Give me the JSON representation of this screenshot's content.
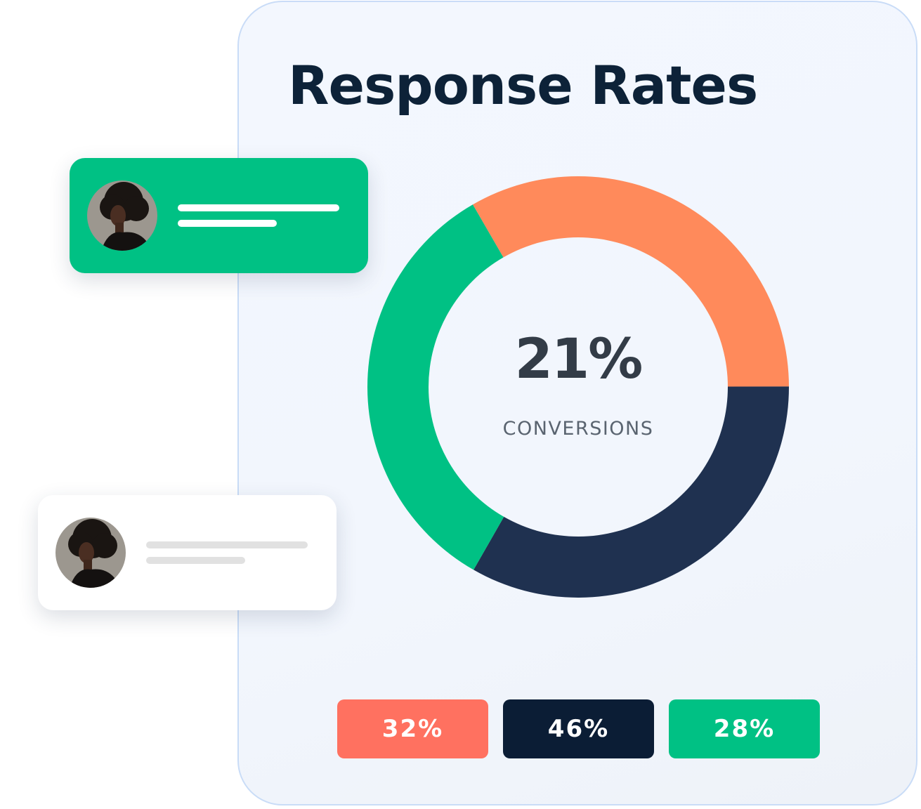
{
  "header": {
    "title": "Response Rates"
  },
  "chart_data": {
    "type": "pie",
    "variant": "donut",
    "center_value": "21%",
    "center_label": "CONVERSIONS",
    "segments": [
      {
        "value": 0.333,
        "color": "#ff8a5b"
      },
      {
        "value": 0.333,
        "color": "#1f3150"
      },
      {
        "value": 0.334,
        "color": "#00c184"
      }
    ]
  },
  "stats": [
    {
      "label": "32%",
      "color": "#ff7160"
    },
    {
      "label": "46%",
      "color": "#0b1d35"
    },
    {
      "label": "28%",
      "color": "#00c184"
    }
  ],
  "cards": [
    {
      "style": "green",
      "icon": "avatar-icon",
      "line_color": "#ffffff"
    },
    {
      "style": "white",
      "icon": "avatar-icon",
      "line_color": "#e1e1e1"
    }
  ]
}
